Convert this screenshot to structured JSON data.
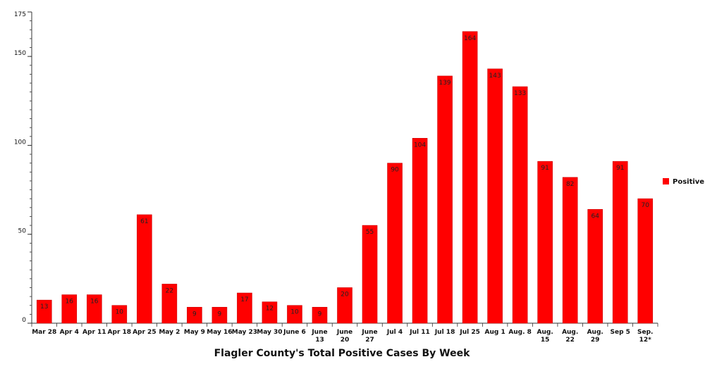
{
  "chart_data": {
    "type": "bar",
    "title": "Flagler County's Total Positive Cases By Week",
    "xlabel": "",
    "ylabel": "",
    "categories": [
      "Mar 28",
      "Apr 4",
      "Apr 11",
      "Apr 18",
      "Apr 25",
      "May 2",
      "May 9",
      "May 16",
      "May 23",
      "May 30",
      "June 6",
      "June 13",
      "June 20",
      "June 27",
      "Jul 4",
      "Jul 11",
      "Jul 18",
      "Jul 25",
      "Aug 1",
      "Aug. 8",
      "Aug. 15",
      "Aug. 22",
      "Aug. 29",
      "Sep 5",
      "Sep. 12*"
    ],
    "category_lines": [
      [
        "Mar 28"
      ],
      [
        "Apr 4"
      ],
      [
        "Apr 11"
      ],
      [
        "Apr 18"
      ],
      [
        "Apr 25"
      ],
      [
        "May 2"
      ],
      [
        "May 9"
      ],
      [
        "May 16"
      ],
      [
        "May 23"
      ],
      [
        "May 30"
      ],
      [
        "June 6"
      ],
      [
        "June",
        "13"
      ],
      [
        "June",
        "20"
      ],
      [
        "June",
        "27"
      ],
      [
        "Jul 4"
      ],
      [
        "Jul 11"
      ],
      [
        "Jul 18"
      ],
      [
        "Jul 25"
      ],
      [
        "Aug 1"
      ],
      [
        "Aug. 8"
      ],
      [
        "Aug.",
        "15"
      ],
      [
        "Aug.",
        "22"
      ],
      [
        "Aug.",
        "29"
      ],
      [
        "Sep 5"
      ],
      [
        "Sep.",
        "12*"
      ]
    ],
    "series": [
      {
        "name": "Positive",
        "color": "#ff0000",
        "values": [
          13,
          16,
          16,
          10,
          61,
          22,
          9,
          9,
          17,
          12,
          10,
          9,
          20,
          55,
          90,
          104,
          139,
          164,
          143,
          133,
          91,
          82,
          64,
          91,
          70
        ],
        "value_labels": [
          "13",
          "16",
          "16",
          "10",
          "61",
          "22",
          "9",
          "9",
          "17",
          "12",
          "10",
          "9",
          "20",
          "55",
          "90",
          "104",
          "139",
          "164",
          "143",
          "133",
          "91",
          "82",
          "64",
          "91",
          "70"
        ]
      }
    ],
    "ylim": [
      0,
      175
    ],
    "yticks": [
      0,
      50,
      100,
      150,
      175
    ],
    "ytick_labels": [
      "0",
      "50",
      "100",
      "150",
      "175"
    ],
    "minor_ytick_step": 5,
    "grid": false,
    "legend": {
      "position": "right",
      "entries": [
        "Positive"
      ]
    },
    "colors": {
      "bar": "#ff0000",
      "bar_stroke": "#cc0000",
      "axis": "#333333"
    }
  }
}
